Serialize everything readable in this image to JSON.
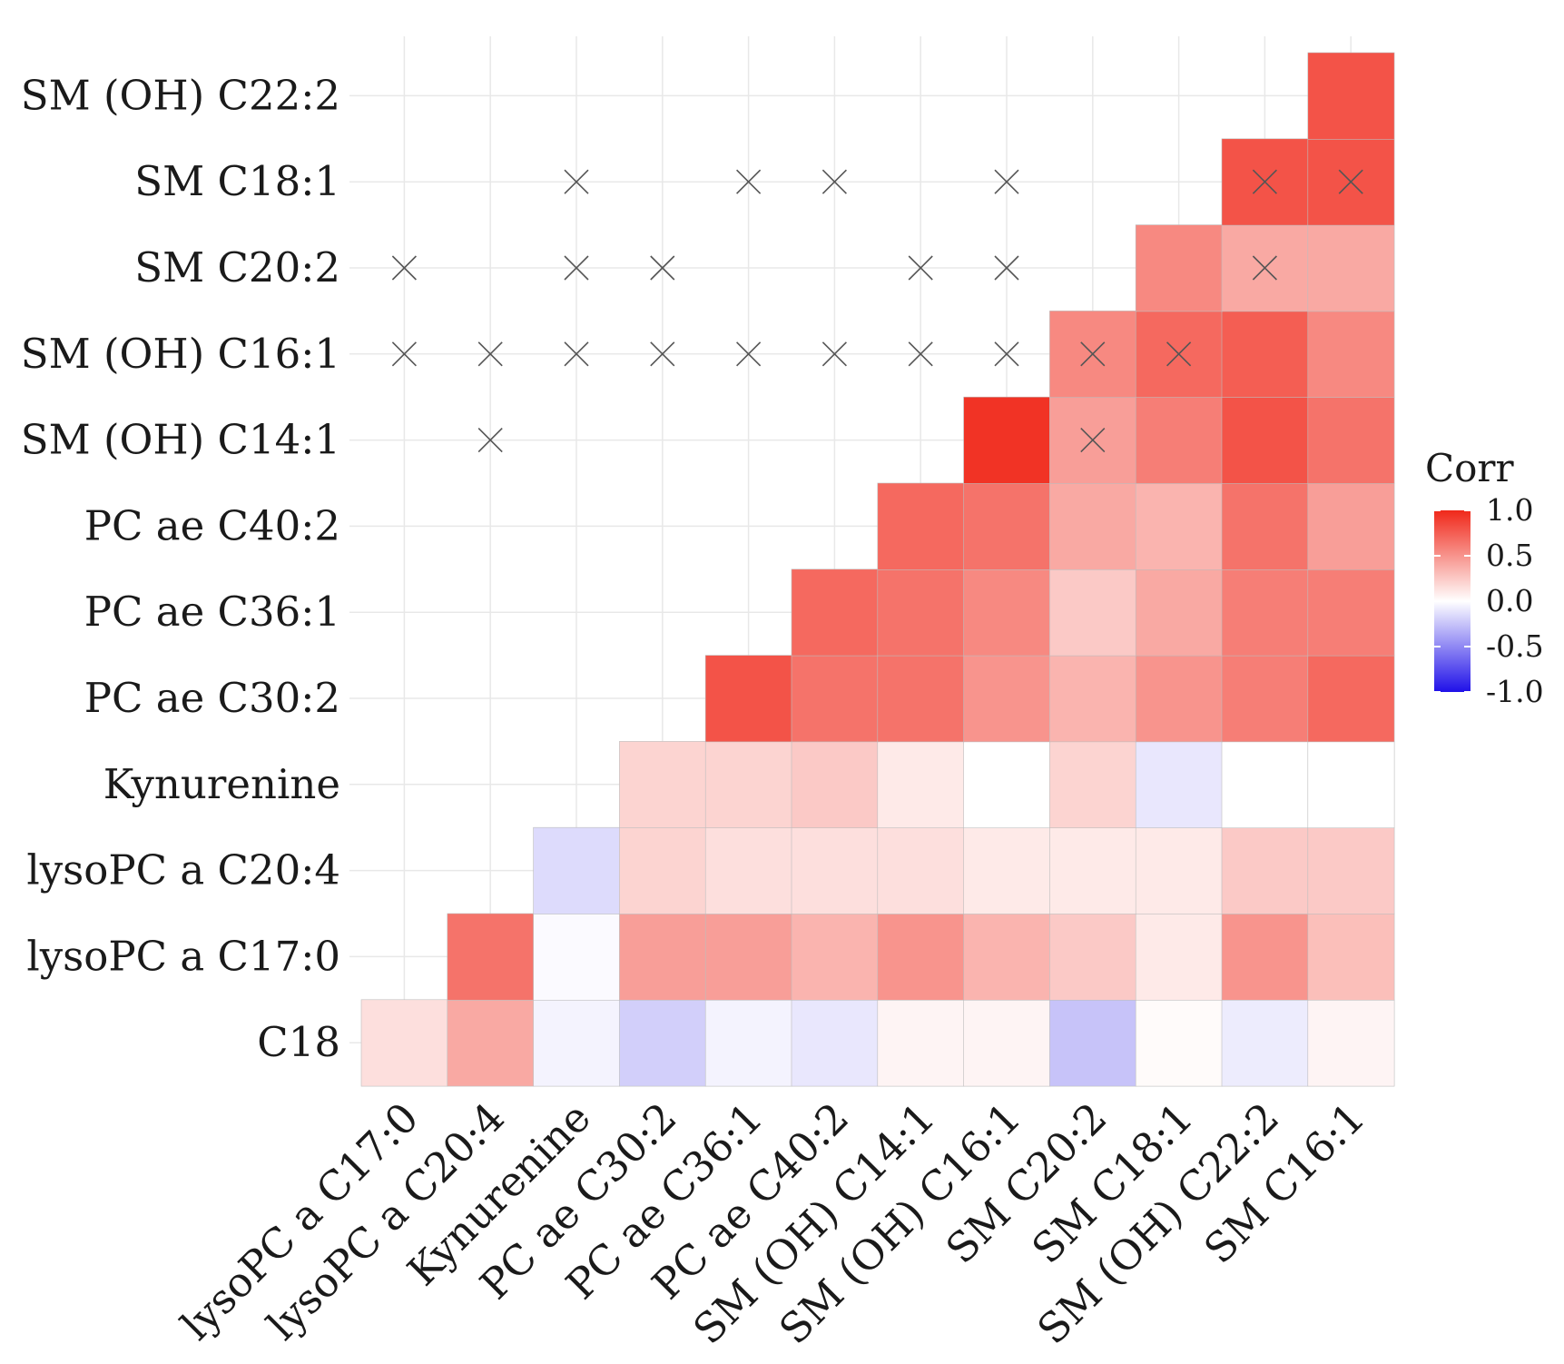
{
  "chart_data": {
    "type": "heatmap",
    "title": "",
    "xlabel": "",
    "ylabel": "",
    "x_categories": [
      "lysoPC a C17:0",
      "lysoPC a C20:4",
      "Kynurenine",
      "PC ae C30:2",
      "PC ae C36:1",
      "PC ae C40:2",
      "SM (OH) C14:1",
      "SM (OH) C16:1",
      "SM C20:2",
      "SM C18:1",
      "SM (OH) C22:2",
      "SM C16:1"
    ],
    "y_categories": [
      "C18",
      "lysoPC a C17:0",
      "lysoPC a C20:4",
      "Kynurenine",
      "PC ae C30:2",
      "PC ae C36:1",
      "PC ae C40:2",
      "SM (OH) C14:1",
      "SM (OH) C16:1",
      "SM C20:2",
      "SM C18:1",
      "SM (OH) C22:2"
    ],
    "values": [
      [
        0.15,
        0.4,
        -0.05,
        -0.2,
        -0.05,
        -0.1,
        0.05,
        0.05,
        -0.25,
        0.02,
        -0.08,
        0.05
      ],
      [
        null,
        0.65,
        -0.02,
        0.45,
        0.45,
        0.35,
        0.5,
        0.35,
        0.25,
        0.1,
        0.5,
        0.3
      ],
      [
        null,
        null,
        -0.15,
        0.2,
        0.15,
        0.15,
        0.15,
        0.1,
        0.1,
        0.1,
        0.25,
        0.25
      ],
      [
        null,
        null,
        null,
        0.2,
        0.2,
        0.25,
        0.1,
        0.0,
        0.2,
        -0.1,
        0.0,
        0.0
      ],
      [
        null,
        null,
        null,
        null,
        0.8,
        0.65,
        0.65,
        0.5,
        0.35,
        0.5,
        0.6,
        0.7
      ],
      [
        null,
        null,
        null,
        null,
        null,
        0.7,
        0.65,
        0.55,
        0.25,
        0.4,
        0.6,
        0.6
      ],
      [
        null,
        null,
        null,
        null,
        null,
        null,
        0.7,
        0.65,
        0.4,
        0.35,
        0.65,
        0.45
      ],
      [
        null,
        null,
        null,
        null,
        null,
        null,
        null,
        0.95,
        0.45,
        0.6,
        0.8,
        0.65
      ],
      [
        null,
        null,
        null,
        null,
        null,
        null,
        null,
        null,
        0.55,
        0.7,
        0.75,
        0.55
      ],
      [
        null,
        null,
        null,
        null,
        null,
        null,
        null,
        null,
        null,
        0.55,
        0.4,
        0.4
      ],
      [
        null,
        null,
        null,
        null,
        null,
        null,
        null,
        null,
        null,
        null,
        0.8,
        0.8
      ],
      [
        null,
        null,
        null,
        null,
        null,
        null,
        null,
        null,
        null,
        null,
        null,
        0.8
      ]
    ],
    "insignificant": [
      [
        2,
        10
      ],
      [
        4,
        10
      ],
      [
        5,
        10
      ],
      [
        7,
        10
      ],
      [
        10,
        10
      ],
      [
        11,
        10
      ],
      [
        0,
        9
      ],
      [
        2,
        9
      ],
      [
        3,
        9
      ],
      [
        6,
        9
      ],
      [
        7,
        9
      ],
      [
        10,
        9
      ],
      [
        0,
        8
      ],
      [
        1,
        8
      ],
      [
        2,
        8
      ],
      [
        3,
        8
      ],
      [
        4,
        8
      ],
      [
        5,
        8
      ],
      [
        6,
        8
      ],
      [
        7,
        8
      ],
      [
        8,
        8
      ],
      [
        9,
        8
      ],
      [
        1,
        7
      ],
      [
        8,
        7
      ]
    ],
    "colorscale": {
      "low": "#1f10e8",
      "mid": "#ffffff",
      "high": "#f0281a",
      "range": [
        -1.0,
        1.0
      ]
    },
    "legend": {
      "title": "Corr",
      "tick_labels": [
        "1.0",
        "0.5",
        "0.0",
        "-0.5",
        "-1.0"
      ],
      "tick_values": [
        1.0,
        0.5,
        0.0,
        -0.5,
        -1.0
      ],
      "placement": "right"
    },
    "grid": true,
    "gridline_color": "#e8e8e8",
    "text_color": "#1a1a1a",
    "cross_color": "#555555"
  }
}
